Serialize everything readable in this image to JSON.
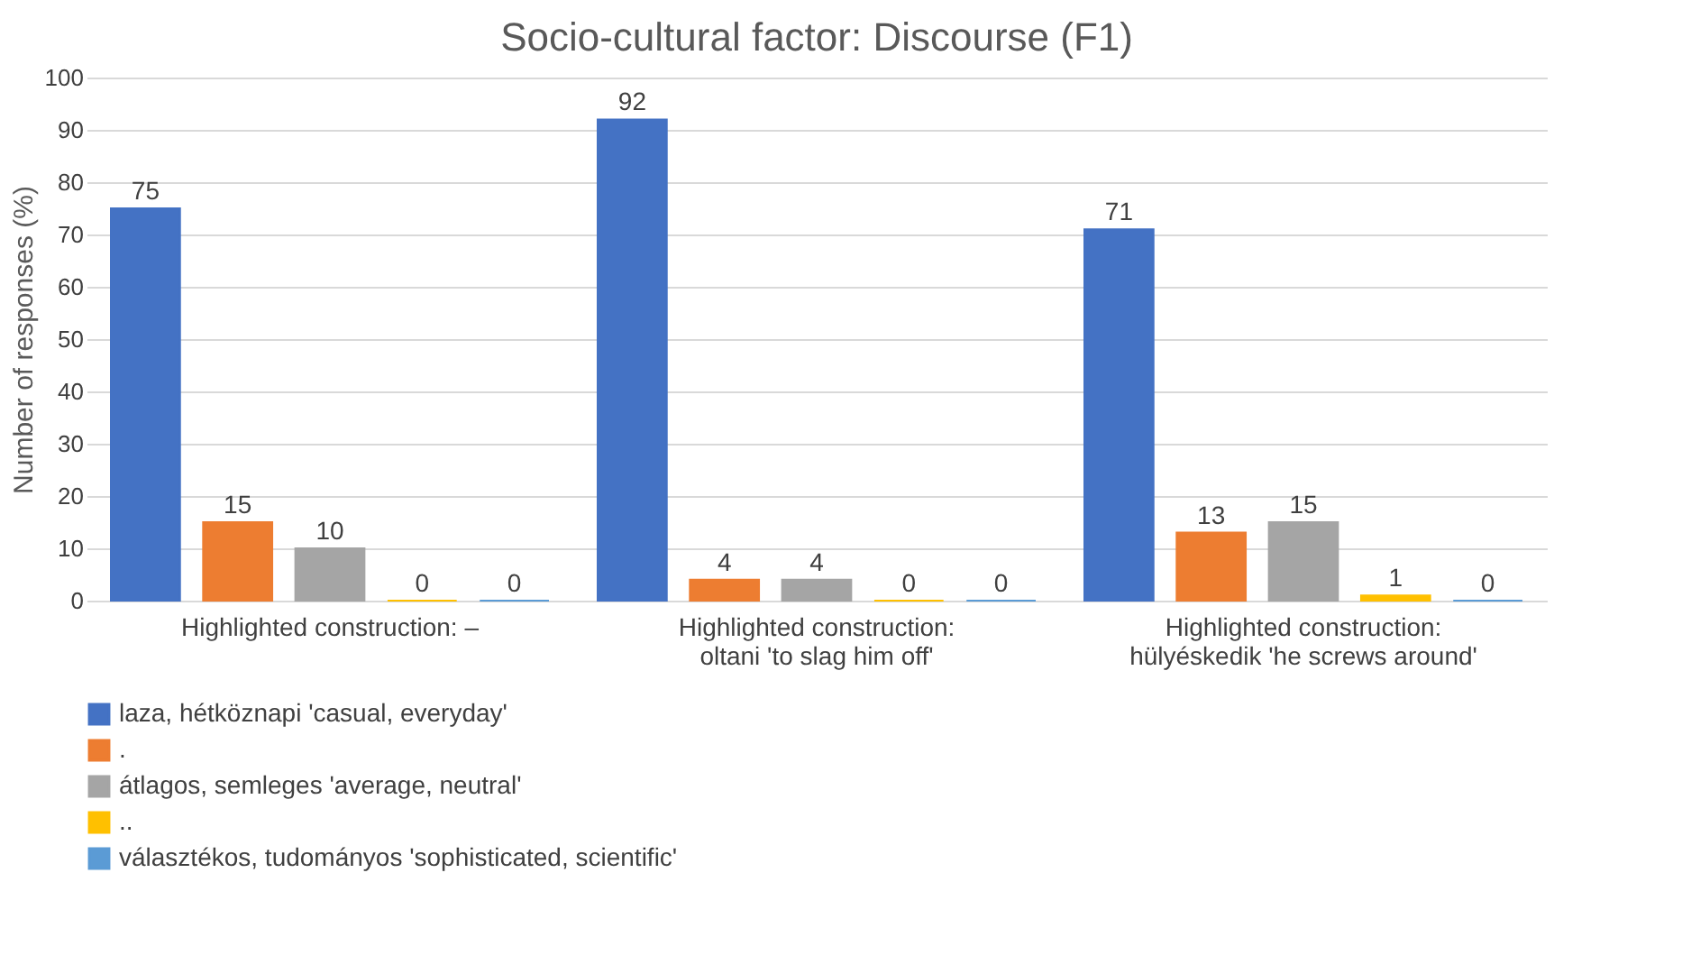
{
  "chart_data": {
    "type": "bar",
    "title": "Socio-cultural factor: Discourse (F1)",
    "ylabel": "Number of responses (%)",
    "categories": [
      "Highlighted construction: –",
      "Highlighted construction:\noltani 'to slag him off'",
      "Highlighted construction:\nhülyéskedik 'he screws around'"
    ],
    "series": [
      {
        "name": "laza, hétköznapi 'casual, everyday'",
        "color": "#4472c4",
        "values": [
          75,
          92,
          71
        ]
      },
      {
        "name": ".",
        "color": "#ed7d31",
        "values": [
          15,
          4,
          13
        ]
      },
      {
        "name": "átlagos, semleges 'average, neutral'",
        "color": "#a5a5a5",
        "values": [
          10,
          4,
          15
        ]
      },
      {
        "name": "..",
        "color": "#ffc000",
        "values": [
          0,
          0,
          1
        ]
      },
      {
        "name": "választékos, tudományos 'sophisticated, scientific'",
        "color": "#5b9bd5",
        "values": [
          0,
          0,
          0
        ]
      }
    ],
    "ylim": [
      0,
      100
    ],
    "yticks": [
      0,
      10,
      20,
      30,
      40,
      50,
      60,
      70,
      80,
      90,
      100
    ],
    "grid": true,
    "legend": "bottom",
    "data_labels": true
  }
}
